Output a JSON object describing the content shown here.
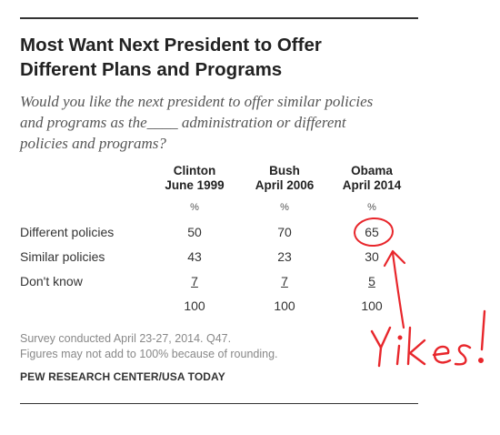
{
  "title_line1": "Most Want Next President to Offer",
  "title_line2": "Different Plans and Programs",
  "subtitle_line1": "Would you like the next president to offer similar policies",
  "subtitle_line2": "and programs as the____ administration or different",
  "subtitle_line3": "policies and programs?",
  "chart_data": {
    "type": "table",
    "columns": [
      {
        "name": "Clinton",
        "date": "June 1999"
      },
      {
        "name": "Bush",
        "date": "April 2006"
      },
      {
        "name": "Obama",
        "date": "April 2014"
      }
    ],
    "unit_row": [
      "%",
      "%",
      "%"
    ],
    "rows": [
      {
        "label": "Different policies",
        "values": [
          "50",
          "70",
          "65"
        ]
      },
      {
        "label": "Similar policies",
        "values": [
          "43",
          "23",
          "30"
        ]
      },
      {
        "label": "Don't know",
        "values": [
          "7",
          "7",
          "5"
        ]
      },
      {
        "label": "",
        "values": [
          "100",
          "100",
          "100"
        ]
      }
    ]
  },
  "note_line1": "Survey conducted April 23-27, 2014. Q47.",
  "note_line2": "Figures may not add to 100% because of rounding.",
  "source": "PEW RESEARCH CENTER/USA TODAY",
  "annotation": {
    "text": "Yikes!",
    "color": "#e8262b"
  }
}
